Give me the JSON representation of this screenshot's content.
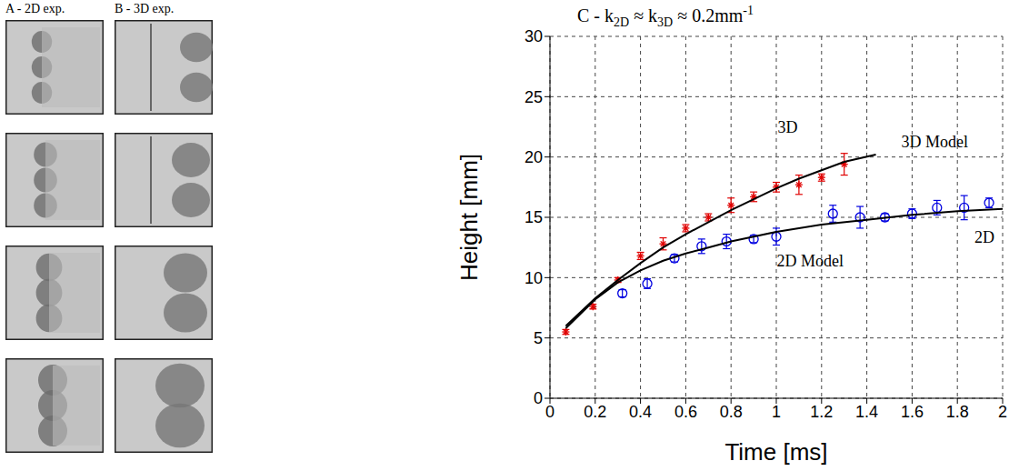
{
  "panels": [
    {
      "label": "A - 2D exp."
    },
    {
      "label": "B - 3D exp."
    }
  ],
  "chart_data": {
    "type": "scatter",
    "title": "C - k2D ≈ k3D ≈ 0.2mm-1",
    "x_label": "Time [ms]",
    "y_label": "Height [mm]",
    "xlim": [
      0,
      2
    ],
    "xticks": [
      0,
      0.2,
      0.4,
      0.6,
      0.8,
      1,
      1.2,
      1.4,
      1.6,
      1.8,
      2
    ],
    "ylim": [
      0,
      30
    ],
    "yticks": [
      0,
      5,
      10,
      15,
      20,
      25,
      30
    ],
    "grid": true,
    "series": [
      {
        "name": "3D",
        "type": "scatter",
        "color": "#e00000",
        "marker": "asterisk",
        "x": [
          0.07,
          0.19,
          0.3,
          0.4,
          0.5,
          0.6,
          0.7,
          0.8,
          0.9,
          1.0,
          1.1,
          1.2,
          1.3
        ],
        "values": [
          5.5,
          7.6,
          9.8,
          11.8,
          12.8,
          14.1,
          15.0,
          16.0,
          16.7,
          17.5,
          17.7,
          18.3,
          19.4
        ],
        "errors": [
          0.2,
          0.2,
          0.2,
          0.3,
          0.5,
          0.3,
          0.3,
          0.6,
          0.4,
          0.4,
          0.8,
          0.3,
          0.9
        ]
      },
      {
        "name": "2D",
        "type": "scatter",
        "color": "#0000e0",
        "marker": "circle",
        "x": [
          0.32,
          0.43,
          0.55,
          0.67,
          0.78,
          0.9,
          1.0,
          1.25,
          1.37,
          1.48,
          1.6,
          1.71,
          1.83,
          1.94
        ],
        "values": [
          8.7,
          9.5,
          11.6,
          12.6,
          13.0,
          13.2,
          13.4,
          15.3,
          15.0,
          15.0,
          15.3,
          15.8,
          15.8,
          16.2
        ],
        "errors": [
          0.3,
          0.4,
          0.3,
          0.6,
          0.6,
          0.3,
          0.7,
          0.7,
          0.9,
          0.3,
          0.4,
          0.6,
          1.0,
          0.4
        ]
      },
      {
        "name": "3D Model",
        "type": "line",
        "color": "#000000",
        "marker": "none",
        "x": [
          0.07,
          0.2,
          0.3,
          0.4,
          0.5,
          0.6,
          0.7,
          0.8,
          0.9,
          1.0,
          1.1,
          1.2,
          1.3,
          1.44
        ],
        "values": [
          6.0,
          8.3,
          9.8,
          11.2,
          12.5,
          13.6,
          14.6,
          15.6,
          16.5,
          17.4,
          18.2,
          18.9,
          19.6,
          20.2
        ]
      },
      {
        "name": "2D Model",
        "type": "line",
        "color": "#000000",
        "marker": "none",
        "x": [
          0.07,
          0.2,
          0.3,
          0.4,
          0.5,
          0.6,
          0.7,
          0.8,
          0.9,
          1.0,
          1.2,
          1.4,
          1.6,
          1.8,
          2.0
        ],
        "values": [
          5.8,
          8.2,
          9.6,
          10.6,
          11.4,
          12.0,
          12.5,
          13.0,
          13.4,
          13.8,
          14.4,
          14.8,
          15.2,
          15.5,
          15.7
        ]
      }
    ],
    "annotations": [
      {
        "text": "3D",
        "x": 1.05,
        "y": 22.5
      },
      {
        "text": "3D Model",
        "x": 1.7,
        "y": 21.3
      },
      {
        "text": "2D Model",
        "x": 1.15,
        "y": 11.4
      },
      {
        "text": "2D",
        "x": 1.92,
        "y": 13.4
      }
    ]
  }
}
